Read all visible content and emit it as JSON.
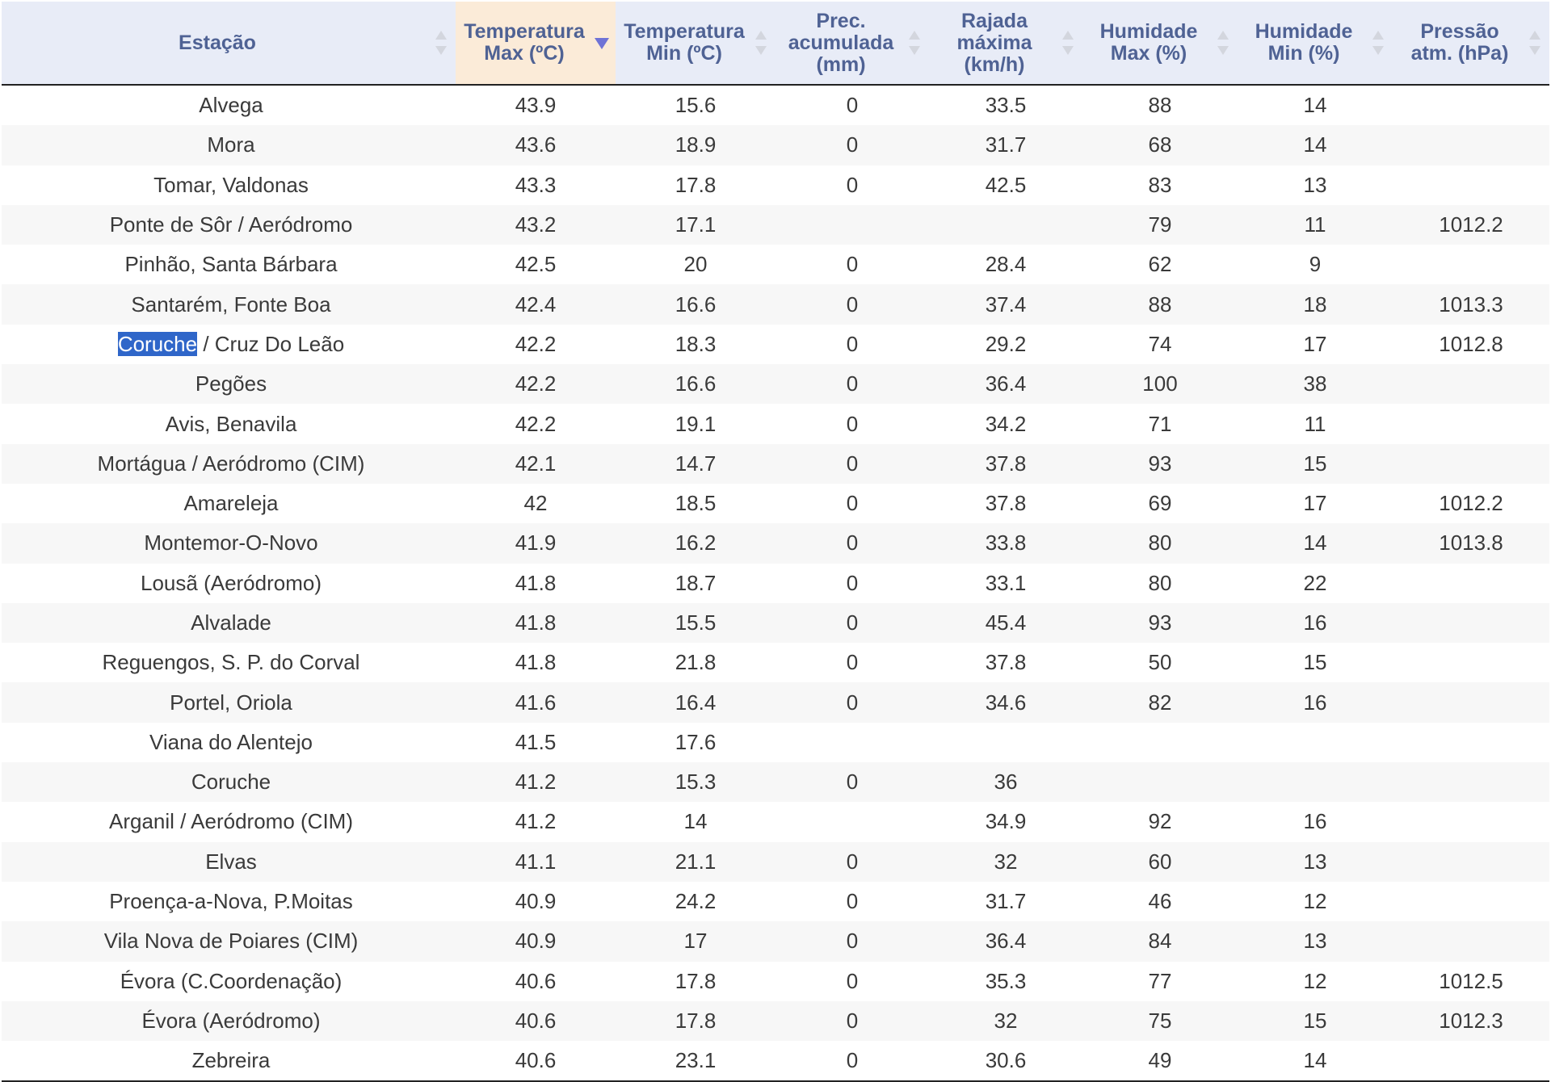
{
  "table": {
    "sorted_column": 1,
    "sort_direction": "descending",
    "columns": [
      {
        "key": "station",
        "label_lines": [
          "Estação"
        ]
      },
      {
        "key": "tmax",
        "label_lines": [
          "Temperatura",
          "Max (ºC)"
        ]
      },
      {
        "key": "tmin",
        "label_lines": [
          "Temperatura",
          "Min (ºC)"
        ]
      },
      {
        "key": "prec",
        "label_lines": [
          "Prec.",
          "acumulada",
          "(mm)"
        ]
      },
      {
        "key": "gust",
        "label_lines": [
          "Rajada",
          "máxima",
          "(km/h)"
        ]
      },
      {
        "key": "hmax",
        "label_lines": [
          "Humidade",
          "Max (%)"
        ]
      },
      {
        "key": "hmin",
        "label_lines": [
          "Humidade",
          "Min (%)"
        ]
      },
      {
        "key": "press",
        "label_lines": [
          "Pressão",
          "atm. (hPa)"
        ]
      }
    ],
    "selection": {
      "row": 6,
      "text": "Coruche",
      "rest": " / Cruz Do Leão"
    },
    "rows": [
      [
        "Alvega",
        "43.9",
        "15.6",
        "0",
        "33.5",
        "88",
        "14",
        ""
      ],
      [
        "Mora",
        "43.6",
        "18.9",
        "0",
        "31.7",
        "68",
        "14",
        ""
      ],
      [
        "Tomar, Valdonas",
        "43.3",
        "17.8",
        "0",
        "42.5",
        "83",
        "13",
        ""
      ],
      [
        "Ponte de Sôr / Aeródromo",
        "43.2",
        "17.1",
        "",
        "",
        "79",
        "11",
        "1012.2"
      ],
      [
        "Pinhão, Santa Bárbara",
        "42.5",
        "20",
        "0",
        "28.4",
        "62",
        "9",
        ""
      ],
      [
        "Santarém, Fonte Boa",
        "42.4",
        "16.6",
        "0",
        "37.4",
        "88",
        "18",
        "1013.3"
      ],
      [
        "Coruche / Cruz Do Leão",
        "42.2",
        "18.3",
        "0",
        "29.2",
        "74",
        "17",
        "1012.8"
      ],
      [
        "Pegões",
        "42.2",
        "16.6",
        "0",
        "36.4",
        "100",
        "38",
        ""
      ],
      [
        "Avis, Benavila",
        "42.2",
        "19.1",
        "0",
        "34.2",
        "71",
        "11",
        ""
      ],
      [
        "Mortágua / Aeródromo (CIM)",
        "42.1",
        "14.7",
        "0",
        "37.8",
        "93",
        "15",
        ""
      ],
      [
        "Amareleja",
        "42",
        "18.5",
        "0",
        "37.8",
        "69",
        "17",
        "1012.2"
      ],
      [
        "Montemor-O-Novo",
        "41.9",
        "16.2",
        "0",
        "33.8",
        "80",
        "14",
        "1013.8"
      ],
      [
        "Lousã (Aeródromo)",
        "41.8",
        "18.7",
        "0",
        "33.1",
        "80",
        "22",
        ""
      ],
      [
        "Alvalade",
        "41.8",
        "15.5",
        "0",
        "45.4",
        "93",
        "16",
        ""
      ],
      [
        "Reguengos, S. P. do Corval",
        "41.8",
        "21.8",
        "0",
        "37.8",
        "50",
        "15",
        ""
      ],
      [
        "Portel, Oriola",
        "41.6",
        "16.4",
        "0",
        "34.6",
        "82",
        "16",
        ""
      ],
      [
        "Viana do Alentejo",
        "41.5",
        "17.6",
        "",
        "",
        "",
        "",
        ""
      ],
      [
        "Coruche",
        "41.2",
        "15.3",
        "0",
        "36",
        "",
        "",
        ""
      ],
      [
        "Arganil / Aeródromo (CIM)",
        "41.2",
        "14",
        "",
        "34.9",
        "92",
        "16",
        ""
      ],
      [
        "Elvas",
        "41.1",
        "21.1",
        "0",
        "32",
        "60",
        "13",
        ""
      ],
      [
        "Proença-a-Nova, P.Moitas",
        "40.9",
        "24.2",
        "0",
        "31.7",
        "46",
        "12",
        ""
      ],
      [
        "Vila Nova de Poiares (CIM)",
        "40.9",
        "17",
        "0",
        "36.4",
        "84",
        "13",
        ""
      ],
      [
        "Évora (C.Coordenação)",
        "40.6",
        "17.8",
        "0",
        "35.3",
        "77",
        "12",
        "1012.5"
      ],
      [
        "Évora (Aeródromo)",
        "40.6",
        "17.8",
        "0",
        "32",
        "75",
        "15",
        "1012.3"
      ],
      [
        "Zebreira",
        "40.6",
        "23.1",
        "0",
        "30.6",
        "49",
        "14",
        ""
      ]
    ]
  },
  "colors": {
    "header_bg": "#e8ecf7",
    "header_text": "#4f6294",
    "sorted_header_bg": "#fbebd8",
    "sort_active_arrow": "#6f73d6",
    "selection_bg": "#2f66c9",
    "zebra_bg": "#f7f7f7"
  },
  "icons": {
    "sort_inactive": "sort-both-icon",
    "sort_active": "sort-descending-icon"
  }
}
